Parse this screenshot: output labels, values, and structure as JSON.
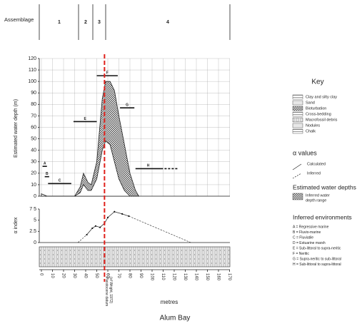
{
  "assemblage": {
    "title": "Assemblage",
    "labels": [
      "1",
      "2",
      "3",
      "4"
    ]
  },
  "chart_data": [
    {
      "type": "area",
      "ylabel": "Estimated water depth (m)",
      "x": [
        0,
        5,
        30,
        35,
        38,
        42,
        45,
        50,
        55,
        58,
        62,
        66,
        70,
        75,
        80,
        85,
        88
      ],
      "upper": [
        2,
        0,
        0,
        8,
        20,
        12,
        10,
        30,
        85,
        100,
        100,
        92,
        70,
        45,
        20,
        5,
        0
      ],
      "lower": [
        2,
        0,
        0,
        3,
        10,
        5,
        5,
        15,
        40,
        48,
        45,
        30,
        15,
        5,
        0,
        0,
        0
      ],
      "ylim": [
        0,
        120
      ],
      "yticks": [
        0,
        10,
        20,
        30,
        40,
        50,
        60,
        70,
        80,
        90,
        100,
        110,
        120
      ],
      "xlim": [
        0,
        170
      ],
      "grid": true,
      "intervals": [
        {
          "label": "A",
          "from": 1,
          "to": 5,
          "depth": 26
        },
        {
          "label": "B",
          "from": 3,
          "to": 7,
          "depth": 17
        },
        {
          "label": "C",
          "from": 6,
          "to": 27,
          "depth": 11
        },
        {
          "label": "E",
          "from": 29,
          "to": 50,
          "depth": 65
        },
        {
          "label": "F",
          "from": 50,
          "to": 69,
          "depth": 105
        },
        {
          "label": "G",
          "from": 71,
          "to": 84,
          "depth": 77
        },
        {
          "label": "H",
          "from": 85,
          "to": 124,
          "depth": 24,
          "dashed_from": 108
        }
      ]
    },
    {
      "type": "line",
      "ylabel": "α index",
      "x": [
        41,
        46,
        49,
        53,
        57,
        60,
        66,
        73,
        79
      ],
      "values": [
        1.75,
        3.2,
        3.7,
        3.4,
        4.3,
        5.6,
        6.9,
        6.4,
        5.9
      ],
      "inferred": {
        "x": [
          33,
          41
        ],
        "values": [
          0,
          1.75
        ],
        "x2": [
          79,
          135
        ],
        "values2": [
          5.9,
          0
        ]
      },
      "ylim": [
        0,
        7.5
      ],
      "yticks": [
        0,
        2.5,
        5,
        {
          "value": 7.5,
          "label": "7 5"
        }
      ],
      "xlim": [
        0,
        170
      ]
    }
  ],
  "xaxis": {
    "label": "metres",
    "xticks": [
      0,
      10,
      20,
      30,
      40,
      50,
      60,
      70,
      80,
      90,
      100,
      110,
      120,
      130,
      140,
      150,
      160,
      170
    ]
  },
  "datum": {
    "x": 57,
    "lines": [
      "Pleistocene datum",
      "(of Wright, 1972)"
    ]
  },
  "caption": "Alum Bay",
  "key": {
    "title": "Key",
    "items": [
      "Clay and silty clay",
      "Sand",
      "Bioturbation",
      "Cross-bedding",
      "Macrofossil debris",
      "Nodules",
      "Chalk"
    ],
    "alpha_title": "α values",
    "alpha_items": [
      "Calculated",
      "Inferred"
    ],
    "depth_title": "Estimated water depths",
    "depth_item": [
      "Inferred water",
      "depth range"
    ],
    "env_title": "Inferred environments",
    "env_items": [
      "A = Regressive marine",
      "B = Fluvio-marine",
      "C = Fluviatile",
      "D = Estuarine marsh",
      "E = Sub-littoral to supra-neritic",
      "F = Neritic",
      "G = Supra-neritic to sub-littoral",
      "H = Sub-littoral to supra-littoral"
    ]
  }
}
